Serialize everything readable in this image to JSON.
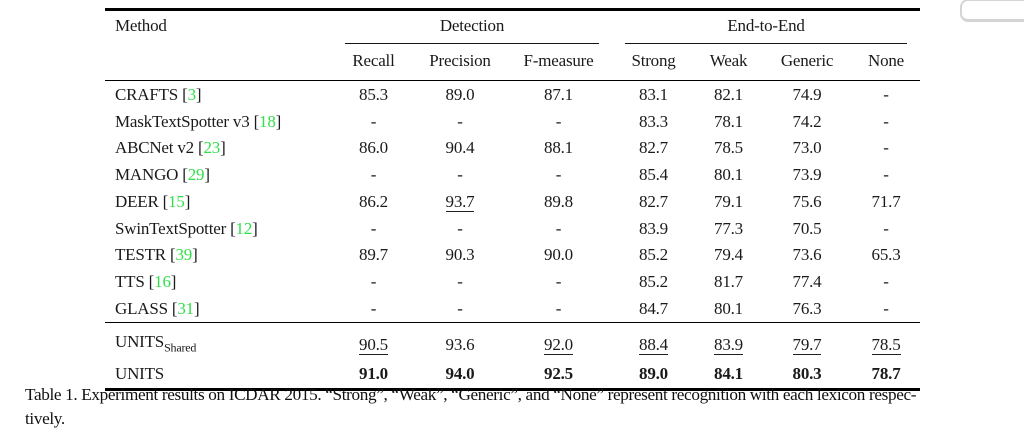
{
  "colors": {
    "citation_green": "#30df4a",
    "rule_black": "#000000",
    "panel_border_gray": "#d4d4d4",
    "background": "#ffffff"
  },
  "table": {
    "method_header": "Method",
    "groups": [
      {
        "label": "Detection",
        "span": 3
      },
      {
        "label": "End-to-End",
        "span": 4
      }
    ],
    "columns": [
      "Recall",
      "Precision",
      "F-measure",
      "Strong",
      "Weak",
      "Generic",
      "None"
    ],
    "rows": [
      {
        "method": "CRAFTS",
        "cite": "3",
        "values": [
          "85.3",
          "89.0",
          "87.1",
          "83.1",
          "82.1",
          "74.9",
          "-"
        ]
      },
      {
        "method": "MaskTextSpotter v3",
        "cite": "18",
        "values": [
          "-",
          "-",
          "-",
          "83.3",
          "78.1",
          "74.2",
          "-"
        ]
      },
      {
        "method": "ABCNet v2",
        "cite": "23",
        "values": [
          "86.0",
          "90.4",
          "88.1",
          "82.7",
          "78.5",
          "73.0",
          "-"
        ]
      },
      {
        "method": "MANGO",
        "cite": "29",
        "values": [
          "-",
          "-",
          "-",
          "85.4",
          "80.1",
          "73.9",
          "-"
        ]
      },
      {
        "method": "DEER",
        "cite": "15",
        "values": [
          "86.2",
          {
            "v": "93.7",
            "u": true
          },
          "89.8",
          "82.7",
          "79.1",
          "75.6",
          "71.7"
        ]
      },
      {
        "method": "SwinTextSpotter",
        "cite": "12",
        "values": [
          "-",
          "-",
          "-",
          "83.9",
          "77.3",
          "70.5",
          "-"
        ]
      },
      {
        "method": "TESTR",
        "cite": "39",
        "values": [
          "89.7",
          "90.3",
          "90.0",
          "85.2",
          "79.4",
          "73.6",
          "65.3"
        ]
      },
      {
        "method": "TTS",
        "cite": "16",
        "values": [
          "-",
          "-",
          "-",
          "85.2",
          "81.7",
          "77.4",
          "-"
        ]
      },
      {
        "method": "GLASS",
        "cite": "31",
        "values": [
          "-",
          "-",
          "-",
          "84.7",
          "80.1",
          "76.3",
          "-"
        ]
      }
    ],
    "footer_rows": [
      {
        "method": "UNITS",
        "subscript": "Shared",
        "values": [
          {
            "v": "90.5",
            "u": true
          },
          "93.6",
          {
            "v": "92.0",
            "u": true
          },
          {
            "v": "88.4",
            "u": true
          },
          {
            "v": "83.9",
            "u": true
          },
          {
            "v": "79.7",
            "u": true
          },
          {
            "v": "78.5",
            "u": true
          }
        ]
      },
      {
        "method": "UNITS",
        "bold": true,
        "values": [
          "91.0",
          "94.0",
          "92.5",
          "89.0",
          "84.1",
          "80.3",
          "78.7"
        ]
      }
    ]
  },
  "caption": {
    "lines": [
      "Table 1.  Experiment results on ICDAR 2015.  “Strong”, “Weak”, “Generic”, and “None” represent recognition with each lexicon respec-",
      "tively."
    ]
  }
}
